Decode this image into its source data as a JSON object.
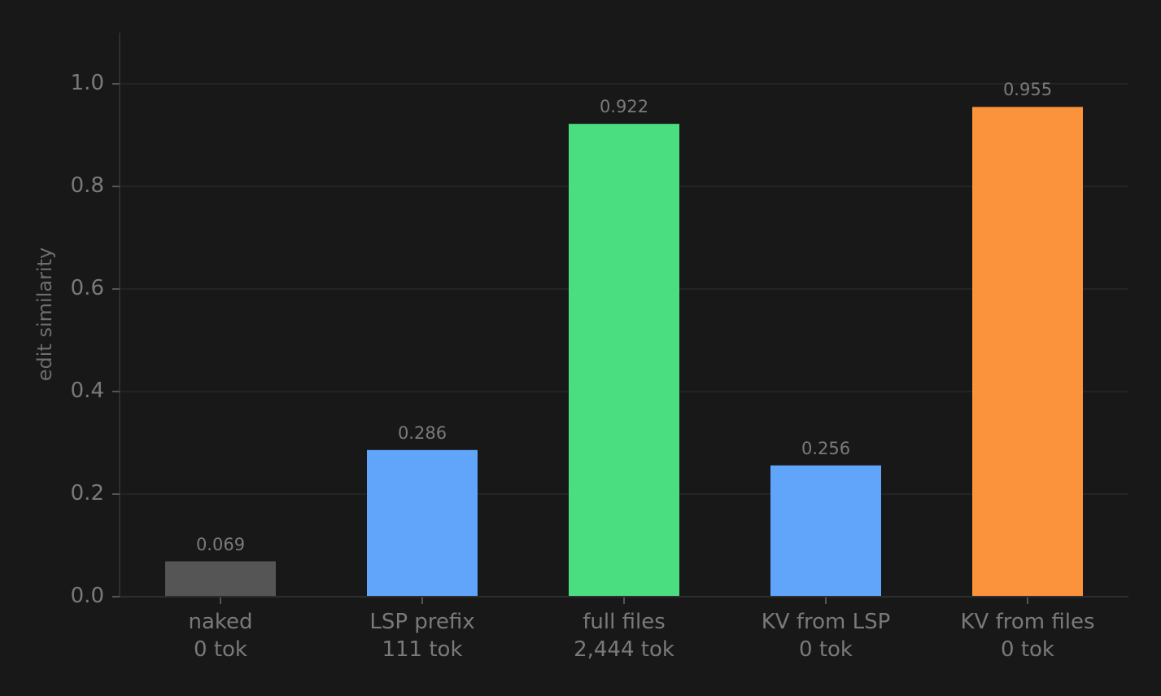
{
  "chart_data": {
    "type": "bar",
    "title": "",
    "xlabel": "",
    "ylabel": "edit similarity",
    "ylim": [
      0,
      1.1
    ],
    "yticks": [
      0.0,
      0.2,
      0.4,
      0.6,
      0.8,
      1.0
    ],
    "ytick_labels": [
      "0.0",
      "0.2",
      "0.4",
      "0.6",
      "0.8",
      "1.0"
    ],
    "grid": true,
    "legend": null,
    "categories": [
      "naked",
      "LSP prefix",
      "full files",
      "KV from LSP",
      "KV from files"
    ],
    "category_sublabels": [
      "0 tok",
      "111 tok",
      "2,444 tok",
      "0 tok",
      "0 tok"
    ],
    "values": [
      0.069,
      0.286,
      0.922,
      0.256,
      0.955
    ],
    "value_labels": [
      "0.069",
      "0.286",
      "0.922",
      "0.256",
      "0.955"
    ],
    "bar_colors": [
      "#555555",
      "#60a5fa",
      "#4ade80",
      "#60a5fa",
      "#fb923c"
    ]
  },
  "theme": {
    "background": "#181818",
    "grid_color": "#242424",
    "axis_color": "#2e2e2e",
    "text_color": "#7a7a7a"
  }
}
